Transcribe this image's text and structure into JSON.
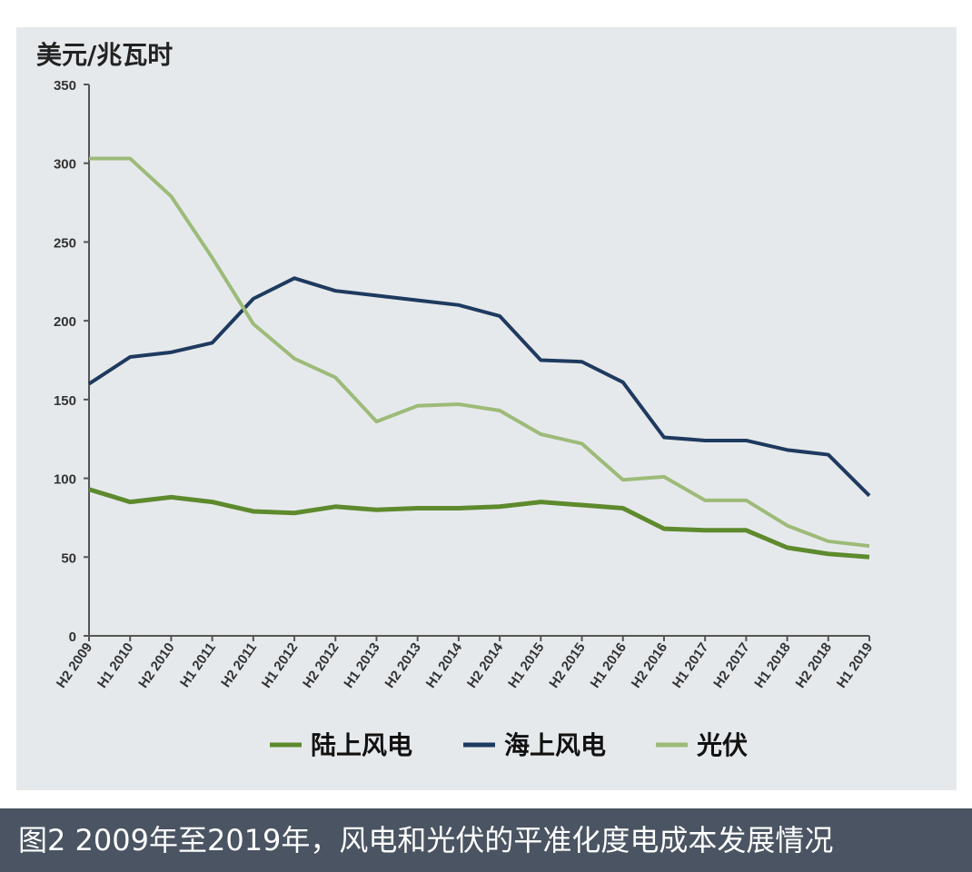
{
  "chart_data": {
    "type": "line",
    "title": "",
    "ylabel": "美元/兆瓦时",
    "xlabel": "",
    "ylim": [
      0,
      350
    ],
    "yticks": [
      0,
      50,
      100,
      150,
      200,
      250,
      300,
      350
    ],
    "grid": false,
    "legend_position": "bottom",
    "categories": [
      "H2 2009",
      "H1 2010",
      "H2 2010",
      "H1 2011",
      "H2 2011",
      "H1 2012",
      "H2 2012",
      "H1 2013",
      "H2 2013",
      "H1 2014",
      "H2 2014",
      "H1 2015",
      "H2 2015",
      "H1 2016",
      "H2 2016",
      "H1 2017",
      "H2 2017",
      "H1 2018",
      "H2 2018",
      "H1 2019"
    ],
    "series": [
      {
        "name": "陆上风电",
        "color": "#5e8a2e",
        "values": [
          93,
          85,
          88,
          85,
          79,
          78,
          82,
          80,
          81,
          81,
          82,
          85,
          83,
          81,
          68,
          67,
          67,
          56,
          52,
          50
        ]
      },
      {
        "name": "海上风电",
        "color": "#1f3a5f",
        "values": [
          160,
          177,
          180,
          186,
          214,
          227,
          219,
          216,
          213,
          210,
          203,
          175,
          174,
          161,
          126,
          124,
          124,
          118,
          115,
          89
        ]
      },
      {
        "name": "光伏",
        "color": "#9dbb78",
        "values": [
          303,
          303,
          279,
          240,
          198,
          176,
          164,
          136,
          146,
          147,
          143,
          128,
          122,
          99,
          101,
          86,
          86,
          70,
          60,
          57
        ]
      }
    ]
  },
  "caption": "图2  2009年至2019年，风电和光伏的平准化度电成本发展情况"
}
